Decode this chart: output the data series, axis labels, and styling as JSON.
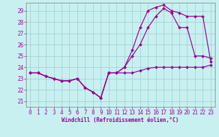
{
  "xlabel": "Windchill (Refroidissement éolien,°C)",
  "ylabel": "",
  "background_color": "#c8f0f0",
  "grid_color": "#99cccc",
  "line_color": "#990099",
  "xlim": [
    -0.5,
    23.5
  ],
  "ylim": [
    20.5,
    29.7
  ],
  "xticks": [
    0,
    1,
    2,
    3,
    4,
    5,
    6,
    7,
    8,
    9,
    10,
    11,
    12,
    13,
    14,
    15,
    16,
    17,
    18,
    19,
    20,
    21,
    22,
    23
  ],
  "yticks": [
    21,
    22,
    23,
    24,
    25,
    26,
    27,
    28,
    29
  ],
  "series1_x": [
    0,
    1,
    2,
    3,
    4,
    5,
    6,
    7,
    8,
    9,
    10,
    11,
    12,
    13,
    14,
    15,
    16,
    17,
    18,
    19,
    20,
    21,
    22,
    23
  ],
  "series1_y": [
    23.5,
    23.5,
    23.2,
    23.0,
    22.8,
    22.8,
    23.0,
    22.2,
    21.8,
    21.3,
    23.5,
    23.5,
    23.5,
    23.5,
    23.7,
    23.9,
    24.0,
    24.0,
    24.0,
    24.0,
    24.0,
    24.0,
    24.0,
    24.2
  ],
  "series2_x": [
    0,
    1,
    2,
    3,
    4,
    5,
    6,
    7,
    8,
    9,
    10,
    11,
    12,
    13,
    14,
    15,
    16,
    17,
    18,
    19,
    20,
    21,
    22,
    23
  ],
  "series2_y": [
    23.5,
    23.5,
    23.2,
    23.0,
    22.8,
    22.8,
    23.0,
    22.2,
    21.8,
    21.3,
    23.5,
    23.5,
    24.0,
    25.0,
    26.0,
    27.5,
    28.5,
    29.2,
    28.8,
    27.5,
    27.5,
    25.0,
    25.0,
    24.8
  ],
  "series3_x": [
    0,
    1,
    2,
    3,
    4,
    5,
    6,
    7,
    8,
    9,
    10,
    11,
    12,
    13,
    14,
    15,
    16,
    17,
    18,
    19,
    20,
    21,
    22,
    23
  ],
  "series3_y": [
    23.5,
    23.5,
    23.2,
    23.0,
    22.8,
    22.8,
    23.0,
    22.2,
    21.8,
    21.3,
    23.5,
    23.5,
    24.0,
    25.5,
    27.5,
    29.0,
    29.3,
    29.5,
    29.0,
    28.8,
    28.5,
    28.5,
    28.5,
    24.5
  ],
  "marker": "D",
  "markersize": 2,
  "linewidth": 0.9,
  "tick_fontsize": 5.5,
  "xlabel_fontsize": 5.5
}
